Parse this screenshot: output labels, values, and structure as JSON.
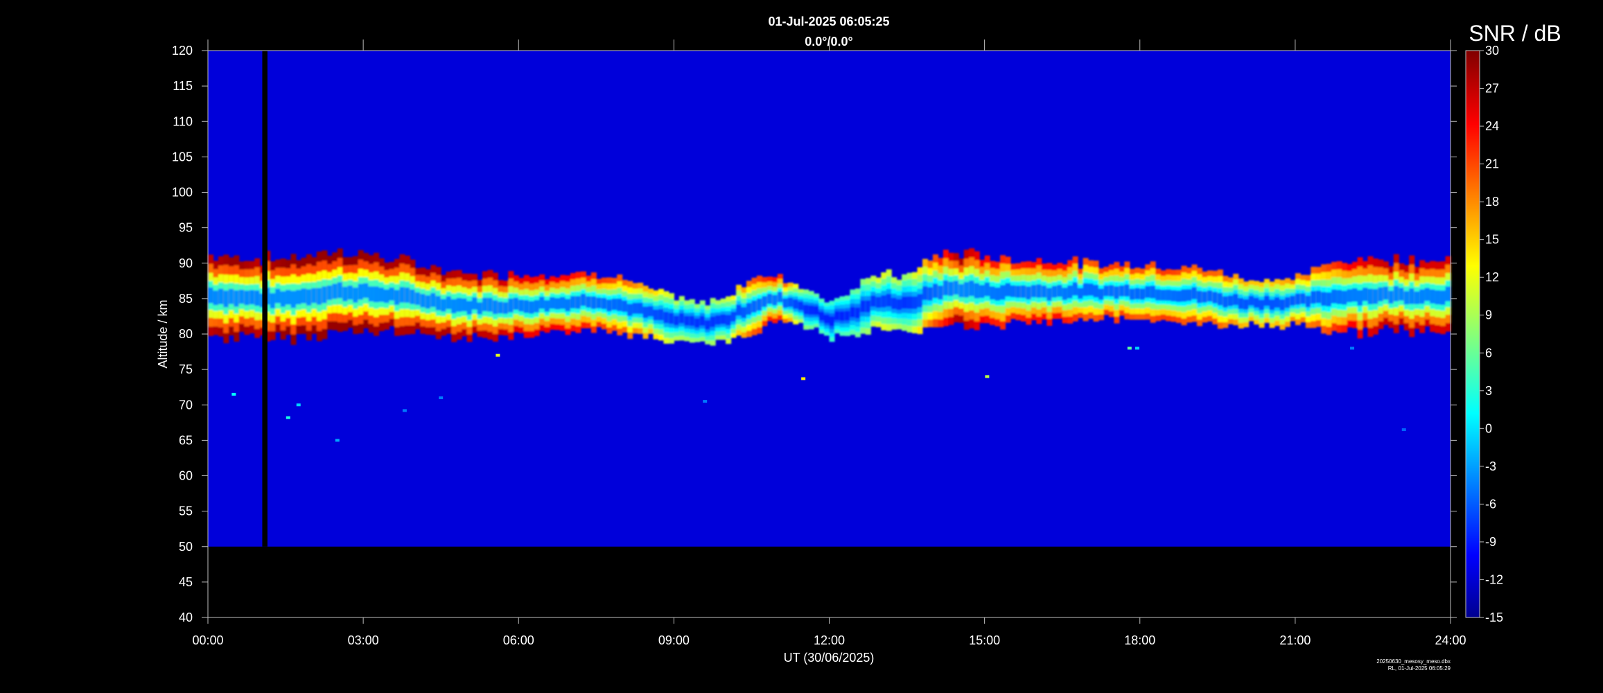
{
  "chart_data": {
    "type": "heatmap",
    "title": "01-Jul-2025 06:05:25",
    "subtitle": "0.0°/0.0°",
    "xlabel": "UT (30/06/2025)",
    "ylabel": "Altitude / km",
    "x_ticks": [
      "00:00",
      "03:00",
      "06:00",
      "09:00",
      "12:00",
      "15:00",
      "18:00",
      "21:00",
      "24:00"
    ],
    "xlim_hours": [
      0,
      24
    ],
    "y_ticks": [
      40,
      45,
      50,
      55,
      60,
      65,
      70,
      75,
      80,
      85,
      90,
      95,
      100,
      105,
      110,
      115,
      120
    ],
    "ylim": [
      40,
      120
    ],
    "data_altitude_range": [
      50,
      120
    ],
    "data_gap_hours": [
      1.05,
      1.15
    ],
    "colorbar": {
      "title": "SNR / dB",
      "range": [
        -15,
        30
      ],
      "ticks": [
        30,
        27,
        24,
        21,
        18,
        15,
        12,
        9,
        6,
        3,
        0,
        -3,
        -6,
        -9,
        -12,
        -15
      ],
      "colormap": "jet"
    },
    "background_snr_db": -11,
    "layer": {
      "description_hours": [
        0,
        0.5,
        1,
        1.5,
        2,
        2.5,
        3,
        3.5,
        4,
        4.5,
        5,
        5.5,
        6,
        6.5,
        7,
        7.5,
        8,
        8.5,
        9,
        9.5,
        10,
        10.5,
        11,
        11.5,
        12,
        12.5,
        13,
        13.5,
        14,
        14.5,
        15,
        15.5,
        16,
        16.5,
        17,
        17.5,
        18,
        18.5,
        19,
        19.5,
        20,
        20.5,
        21,
        21.5,
        22,
        22.5,
        23,
        23.5,
        24
      ],
      "center_km": [
        85.5,
        85.2,
        85,
        85,
        85.5,
        86,
        85.8,
        85.5,
        85,
        84.5,
        84,
        84,
        84,
        84.2,
        84.5,
        84.8,
        84,
        83,
        82,
        81.5,
        82,
        84,
        85,
        84,
        82,
        83,
        85,
        84,
        86,
        86.5,
        86,
        86,
        86,
        86,
        86,
        86,
        86,
        85.8,
        85.5,
        85,
        84.5,
        84.5,
        84.5,
        85,
        85.5,
        85.5,
        85.5,
        85.5,
        85.5
      ],
      "half_width_km": [
        4.5,
        4.5,
        4.5,
        4.5,
        4.5,
        4.5,
        4.5,
        4,
        4,
        3.5,
        3.5,
        3.5,
        3.5,
        3.5,
        3,
        3,
        3,
        2.5,
        2.5,
        2,
        2.5,
        3,
        2.5,
        2,
        2,
        2.5,
        3,
        3,
        4,
        4,
        4,
        3.5,
        3.5,
        3.5,
        3,
        3,
        3,
        3,
        3,
        3,
        2.5,
        2.5,
        2.5,
        3.5,
        4,
        4,
        4,
        4,
        4
      ],
      "peak_snr_db": [
        27,
        29,
        27,
        29,
        29,
        29,
        29,
        28,
        28,
        28,
        27,
        27,
        25,
        25,
        24,
        22,
        20,
        16,
        10,
        8,
        10,
        20,
        24,
        8,
        4,
        6,
        12,
        8,
        20,
        28,
        24,
        22,
        24,
        24,
        20,
        22,
        20,
        22,
        20,
        20,
        16,
        15,
        18,
        20,
        24,
        26,
        27,
        26,
        26
      ]
    },
    "sporadic_echoes": [
      {
        "hour": 0.5,
        "altitude_km": 71.5,
        "snr_db": 2
      },
      {
        "hour": 1.55,
        "altitude_km": 68.2,
        "snr_db": 3
      },
      {
        "hour": 1.75,
        "altitude_km": 70,
        "snr_db": 0
      },
      {
        "hour": 2.5,
        "altitude_km": 65,
        "snr_db": -2
      },
      {
        "hour": 3.8,
        "altitude_km": 69.2,
        "snr_db": -4
      },
      {
        "hour": 4.5,
        "altitude_km": 71,
        "snr_db": -4
      },
      {
        "hour": 5.6,
        "altitude_km": 77,
        "snr_db": 12
      },
      {
        "hour": 9.6,
        "altitude_km": 70.5,
        "snr_db": -4
      },
      {
        "hour": 11.5,
        "altitude_km": 73.7,
        "snr_db": 14
      },
      {
        "hour": 15.05,
        "altitude_km": 74,
        "snr_db": 10
      },
      {
        "hour": 17.8,
        "altitude_km": 78,
        "snr_db": 6
      },
      {
        "hour": 17.95,
        "altitude_km": 78,
        "snr_db": 0
      },
      {
        "hour": 22.1,
        "altitude_km": 78,
        "snr_db": -4
      },
      {
        "hour": 23.1,
        "altitude_km": 66.5,
        "snr_db": -5
      }
    ]
  },
  "footer": {
    "line1": "20250630_mesosy_meso.dbx",
    "line2": "RL, 01-Jul-2025 06:05:29"
  }
}
